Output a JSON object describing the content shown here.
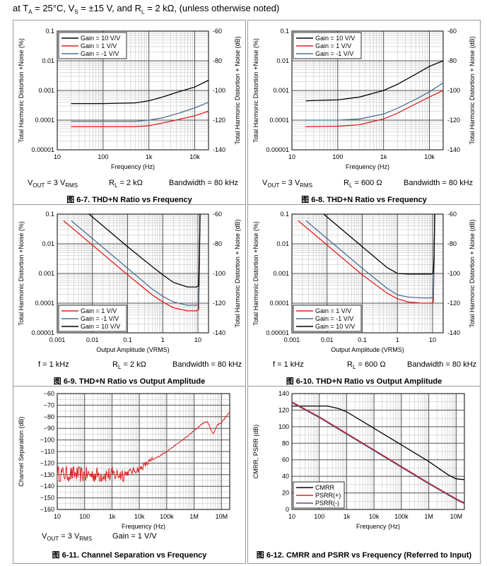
{
  "header": {
    "parts": [
      "at T",
      "A",
      " = 25°C, V",
      "S",
      " = ±15 V, and R",
      "L",
      " = 2 kΩ, (unless otherwise noted)"
    ]
  },
  "colors": {
    "black": "#000000",
    "red": "#e02020",
    "blue": "#4a7090",
    "purple": "#5a4a7a"
  },
  "panels": [
    {
      "cond": [
        [
          "V",
          "OUT",
          " = 3 V",
          "RMS"
        ],
        [
          "R",
          "L",
          " = 2 kΩ",
          ""
        ],
        [
          "Bandwidth = 80 kHz",
          "",
          "",
          ""
        ]
      ],
      "caption": "图 6-7. THD+N Ratio vs Frequency"
    },
    {
      "cond": [
        [
          "V",
          "OUT",
          " = 3 V",
          "RMS"
        ],
        [
          "R",
          "L",
          " = 600 Ω",
          ""
        ],
        [
          "Bandwidth = 80 kHz",
          "",
          "",
          ""
        ]
      ],
      "caption": "图 6-8. THD+N Ratio vs Frequency"
    },
    {
      "cond": [
        [
          "f = 1 kHz",
          "",
          "",
          ""
        ],
        [
          "R",
          "L",
          " = 2 kΩ",
          ""
        ],
        [
          "Bandwidth = 80 kHz",
          "",
          "",
          ""
        ]
      ],
      "caption": "图 6-9. THD+N Ratio vs Output Amplitude"
    },
    {
      "cond": [
        [
          "f = 1 kHz",
          "",
          "",
          ""
        ],
        [
          "R",
          "L",
          " = 600 Ω",
          ""
        ],
        [
          "Bandwidth = 80 kHz",
          "",
          "",
          ""
        ]
      ],
      "caption": "图 6-10. THD+N Ratio vs Output Amplitude"
    },
    {
      "cond": [
        [
          "V",
          "OUT",
          " = 3 V",
          "RMS"
        ],
        [
          "Gain = 1 V/V",
          "",
          "",
          ""
        ]
      ],
      "caption": "图 6-11. Channel Separation vs Frequency"
    },
    {
      "cond": [],
      "caption": "图 6-12. CMRR and PSRR vs Frequency (Referred to Input)"
    }
  ],
  "chart_data": [
    {
      "type": "line",
      "title": "THD+N Ratio vs Frequency (RL = 2 kΩ)",
      "xlabel": "Frequency (Hz)",
      "ylabel": "Total Harmonic Distortion +Noise (%)",
      "y2label": "Total Harmonic Distortion + Noise (dB)",
      "xscale": "log",
      "yscale": "log",
      "xlim": [
        10,
        20000
      ],
      "ylim": [
        1e-05,
        0.1
      ],
      "xticks": [
        10,
        100,
        1000,
        10000
      ],
      "xticklabels": [
        "10",
        "100",
        "1k",
        "10k"
      ],
      "yticks": [
        0.1,
        0.01,
        0.001,
        0.0001,
        1e-05
      ],
      "yticklabels": [
        "0.1",
        "0.01",
        "0.001",
        "0.0001",
        "0.00001"
      ],
      "y2ticklabels": [
        "-60",
        "-80",
        "-100",
        "-120",
        "-140"
      ],
      "legend_pos": "top-left",
      "series": [
        {
          "name": "Gain = 10 V/V",
          "color": "black",
          "x": [
            20,
            100,
            500,
            1000,
            2000,
            5000,
            10000,
            20000
          ],
          "y": [
            0.00036,
            0.00036,
            0.00038,
            0.00045,
            0.0006,
            0.00095,
            0.0013,
            0.0022
          ]
        },
        {
          "name": "Gain = 1 V/V",
          "color": "red",
          "x": [
            20,
            100,
            500,
            1000,
            2000,
            5000,
            10000,
            20000
          ],
          "y": [
            6e-05,
            6e-05,
            6e-05,
            6.5e-05,
            8e-05,
            0.00011,
            0.00014,
            0.0002
          ]
        },
        {
          "name": "Gain = -1 V/V",
          "color": "blue",
          "x": [
            20,
            100,
            500,
            1000,
            2000,
            5000,
            10000,
            20000
          ],
          "y": [
            9e-05,
            9e-05,
            9e-05,
            0.0001,
            0.00012,
            0.00018,
            0.00026,
            0.0004
          ]
        }
      ]
    },
    {
      "type": "line",
      "title": "THD+N Ratio vs Frequency (RL = 600 Ω)",
      "xlabel": "Frequency (Hz)",
      "ylabel": "Total Harmonic Distortion +Noise (%)",
      "y2label": "Total Harmonic Distortion + Noise (dB)",
      "xscale": "log",
      "yscale": "log",
      "xlim": [
        10,
        20000
      ],
      "ylim": [
        1e-05,
        0.1
      ],
      "xticks": [
        10,
        100,
        1000,
        10000
      ],
      "xticklabels": [
        "10",
        "100",
        "1k",
        "10k"
      ],
      "yticks": [
        0.1,
        0.01,
        0.001,
        0.0001,
        1e-05
      ],
      "yticklabels": [
        "0.1",
        "0.01",
        "0.001",
        "0.0001",
        "0.00001"
      ],
      "y2ticklabels": [
        "-60",
        "-80",
        "-100",
        "-120",
        "-140"
      ],
      "legend_pos": "top-left",
      "series": [
        {
          "name": "Gain = 10 V/V",
          "color": "black",
          "x": [
            20,
            100,
            300,
            1000,
            2000,
            5000,
            10000,
            20000
          ],
          "y": [
            0.00045,
            0.00048,
            0.0006,
            0.001,
            0.0016,
            0.0035,
            0.0065,
            0.01
          ]
        },
        {
          "name": "Gain = 1 V/V",
          "color": "red",
          "x": [
            20,
            100,
            300,
            1000,
            2000,
            5000,
            10000,
            20000
          ],
          "y": [
            6e-05,
            6.2e-05,
            7e-05,
            0.00011,
            0.00017,
            0.00035,
            0.0006,
            0.001
          ]
        },
        {
          "name": "Gain = -1 V/V",
          "color": "blue",
          "x": [
            20,
            100,
            300,
            1000,
            2000,
            5000,
            10000,
            20000
          ],
          "y": [
            0.0001,
            0.0001,
            0.00011,
            0.00016,
            0.00025,
            0.0005,
            0.0009,
            0.0018
          ]
        }
      ]
    },
    {
      "type": "line",
      "title": "THD+N Ratio vs Output Amplitude (RL = 2 kΩ)",
      "xlabel": "Output Amplitude (VRMS)",
      "ylabel": "Total Harmonic Distortion +Noise (%)",
      "y2label": "Total Harmonic Distortion + Noise (dB)",
      "xscale": "log",
      "yscale": "log",
      "xlim": [
        0.001,
        20
      ],
      "ylim": [
        1e-05,
        0.1
      ],
      "xticks": [
        0.001,
        0.01,
        0.1,
        1,
        10
      ],
      "xticklabels": [
        "0.001",
        "0.01",
        "0.1",
        "1",
        "10"
      ],
      "yticks": [
        0.1,
        0.01,
        0.001,
        0.0001,
        1e-05
      ],
      "yticklabels": [
        "0.1",
        "0.01",
        "0.001",
        "0.0001",
        "0.00001"
      ],
      "y2ticklabels": [
        "-60",
        "-80",
        "-100",
        "-120",
        "-140"
      ],
      "legend_pos": "bottom-left",
      "series": [
        {
          "name": "Gain = 1 V/V",
          "color": "red",
          "x": [
            0.0015,
            0.01,
            0.1,
            0.5,
            1,
            2,
            5,
            9,
            10.5,
            11,
            11.5
          ],
          "y": [
            0.06,
            0.009,
            0.0009,
            0.00019,
            0.00011,
            7e-05,
            5.5e-05,
            5.5e-05,
            6e-05,
            0.002,
            0.1
          ]
        },
        {
          "name": "Gain = -1 V/V",
          "color": "blue",
          "x": [
            0.0025,
            0.01,
            0.1,
            0.5,
            1,
            2,
            5,
            9,
            10.5,
            11,
            11.5
          ],
          "y": [
            0.06,
            0.015,
            0.0015,
            0.0003,
            0.00017,
            0.00011,
            8.5e-05,
            8.5e-05,
            9e-05,
            0.003,
            0.1
          ]
        },
        {
          "name": "Gain = 10 V/V",
          "color": "black",
          "x": [
            0.008,
            0.01,
            0.1,
            0.5,
            1,
            2,
            5,
            9,
            10.5,
            11,
            11.5
          ],
          "y": [
            0.1,
            0.08,
            0.008,
            0.0017,
            0.0009,
            0.0005,
            0.00035,
            0.00035,
            0.00038,
            0.004,
            0.1
          ]
        }
      ]
    },
    {
      "type": "line",
      "title": "THD+N Ratio vs Output Amplitude (RL = 600 Ω)",
      "xlabel": "Output Amplitude (VRMS)",
      "ylabel": "Total Harmonic Distortion +Noise (%)",
      "y2label": "Total Harmonic Distortion + Noise (dB)",
      "xscale": "log",
      "yscale": "log",
      "xlim": [
        0.001,
        20
      ],
      "ylim": [
        1e-05,
        0.1
      ],
      "xticks": [
        0.001,
        0.01,
        0.1,
        1,
        10
      ],
      "xticklabels": [
        "0.001",
        "0.01",
        "0.1",
        "1",
        "10"
      ],
      "yticks": [
        0.1,
        0.01,
        0.001,
        0.0001,
        1e-05
      ],
      "yticklabels": [
        "0.1",
        "0.01",
        "0.001",
        "0.0001",
        "0.00001"
      ],
      "y2ticklabels": [
        "-60",
        "-80",
        "-100",
        "-120",
        "-140"
      ],
      "legend_pos": "bottom-left",
      "series": [
        {
          "name": "Gain = 1 V/V",
          "color": "red",
          "x": [
            0.0015,
            0.01,
            0.1,
            0.5,
            1,
            2,
            5,
            9,
            10.5,
            11,
            11.5
          ],
          "y": [
            0.06,
            0.009,
            0.0009,
            0.00022,
            0.00014,
            0.00011,
            0.0001,
            0.0001,
            0.00011,
            0.002,
            0.1
          ]
        },
        {
          "name": "Gain = -1 V/V",
          "color": "blue",
          "x": [
            0.0025,
            0.01,
            0.1,
            0.5,
            1,
            2,
            5,
            9,
            10.5,
            11,
            11.5
          ],
          "y": [
            0.06,
            0.015,
            0.0015,
            0.00032,
            0.00019,
            0.00016,
            0.00015,
            0.00015,
            0.00016,
            0.003,
            0.1
          ]
        },
        {
          "name": "Gain = 10 V/V",
          "color": "black",
          "x": [
            0.008,
            0.01,
            0.1,
            0.5,
            1,
            2,
            5,
            9,
            10.5,
            11,
            11.5
          ],
          "y": [
            0.1,
            0.08,
            0.008,
            0.0016,
            0.001,
            0.00095,
            0.00095,
            0.00095,
            0.001,
            0.004,
            0.1
          ]
        }
      ]
    },
    {
      "type": "line",
      "title": "Channel Separation vs Frequency",
      "xlabel": "Frequency (Hz)",
      "ylabel": "Channel Separation (dB)",
      "xscale": "log",
      "yscale": "linear",
      "xlim": [
        10,
        20000000
      ],
      "ylim": [
        -160,
        -60
      ],
      "xticks": [
        10,
        100,
        1000,
        10000,
        100000,
        1000000,
        10000000
      ],
      "xticklabels": [
        "10",
        "100",
        "1k",
        "10k",
        "100k",
        "1M",
        "10M"
      ],
      "yticks": [
        -60,
        -70,
        -80,
        -90,
        -100,
        -110,
        -120,
        -130,
        -140,
        -150,
        -160
      ],
      "yticklabels": [
        "−60",
        "−70",
        "−80",
        "−90",
        "−100",
        "−110",
        "−120",
        "−130",
        "−140",
        "−150",
        "−160"
      ],
      "series": [
        {
          "name": "Channel Separation",
          "color": "red",
          "noisy": true,
          "x": [
            10,
            100,
            1000,
            3000,
            10000,
            20000,
            100000,
            500000,
            1000000,
            2000000,
            3000000,
            4000000,
            5000000,
            7000000,
            10000000,
            20000000
          ],
          "y": [
            -129,
            -130,
            -130,
            -129,
            -125,
            -120,
            -110,
            -98,
            -92,
            -86,
            -84,
            -90,
            -95,
            -87,
            -85,
            -76
          ]
        }
      ]
    },
    {
      "type": "line",
      "title": "CMRR and PSRR vs Frequency (Referred to Input)",
      "xlabel": "Frequency (Hz)",
      "ylabel": "CMRR, PSRR (dB)",
      "xscale": "log",
      "yscale": "linear",
      "xlim": [
        10,
        20000000
      ],
      "ylim": [
        0,
        140
      ],
      "xticks": [
        10,
        100,
        1000,
        10000,
        100000,
        1000000,
        10000000
      ],
      "xticklabels": [
        "10",
        "100",
        "1k",
        "10k",
        "100k",
        "1M",
        "10M"
      ],
      "yticks": [
        0,
        20,
        40,
        60,
        80,
        100,
        120,
        140
      ],
      "yticklabels": [
        "0",
        "20",
        "40",
        "60",
        "80",
        "100",
        "120",
        "140"
      ],
      "legend_pos": "bottom-left",
      "series": [
        {
          "name": "CMRR",
          "color": "black",
          "x": [
            10,
            200,
            500,
            1000,
            10000,
            100000,
            1000000,
            5000000,
            10000000,
            20000000
          ],
          "y": [
            125,
            125,
            122,
            118,
            98,
            78,
            58,
            42,
            37,
            36
          ]
        },
        {
          "name": "PSRR(+)",
          "color": "red",
          "x": [
            10,
            100,
            1000,
            10000,
            100000,
            1000000,
            10000000,
            20000000
          ],
          "y": [
            130,
            112,
            92,
            72,
            52,
            32,
            13,
            8
          ]
        },
        {
          "name": "PSRR(-)",
          "color": "purple",
          "x": [
            10,
            100,
            1000,
            10000,
            100000,
            1000000,
            10000000,
            20000000
          ],
          "y": [
            129,
            111,
            91,
            71,
            51,
            31,
            12,
            7
          ]
        }
      ]
    }
  ]
}
